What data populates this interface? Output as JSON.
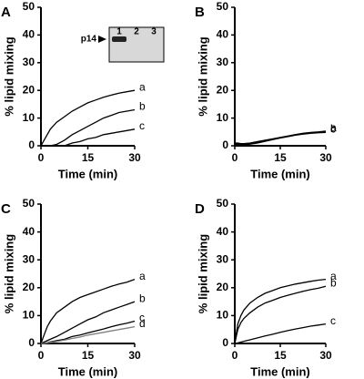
{
  "chart_data": [
    {
      "type": "line",
      "panel_label": "A",
      "y_label": "% lipid mixing",
      "x_label": "Time (min)",
      "xlim": [
        0,
        30
      ],
      "xticks": [
        0,
        15,
        30
      ],
      "ylim": [
        0,
        50
      ],
      "yticks": [
        0,
        10,
        20,
        30,
        40,
        50
      ],
      "x": [
        0,
        1,
        2,
        3,
        5,
        7.5,
        10,
        12.5,
        15,
        17.5,
        20,
        22.5,
        25,
        27.5,
        30
      ],
      "series": [
        {
          "name": "a",
          "color": "#000000",
          "values": [
            0,
            2,
            4,
            6,
            8.5,
            10.5,
            12.5,
            14,
            15.5,
            16.5,
            17.5,
            18.3,
            19,
            19.5,
            20
          ]
        },
        {
          "name": "b",
          "color": "#000000",
          "values": [
            0,
            0,
            0,
            0,
            0.5,
            2,
            4,
            5.5,
            7,
            8.5,
            10,
            11,
            12,
            12.5,
            13
          ]
        },
        {
          "name": "c",
          "color": "#000000",
          "values": [
            0,
            0,
            0,
            0,
            0,
            0,
            1,
            1.5,
            2.5,
            3,
            4,
            4.5,
            5,
            5.5,
            6
          ]
        }
      ],
      "inset": {
        "lane_labels": [
          "1",
          "2",
          "3"
        ],
        "band_label": "p14"
      }
    },
    {
      "type": "line",
      "panel_label": "B",
      "y_label": "% lipid mixing",
      "x_label": "Time (min)",
      "xlim": [
        0,
        30
      ],
      "xticks": [
        0,
        15,
        30
      ],
      "ylim": [
        0,
        50
      ],
      "yticks": [
        0,
        10,
        20,
        30,
        40,
        50
      ],
      "x": [
        0,
        1,
        2,
        3,
        5,
        7.5,
        10,
        12.5,
        15,
        17.5,
        20,
        22.5,
        25,
        27.5,
        30
      ],
      "series": [
        {
          "name": "a",
          "color": "#000000",
          "values": [
            1,
            1,
            0.8,
            0.8,
            1,
            1.5,
            2,
            2.5,
            3,
            3.5,
            4,
            4.5,
            4.8,
            5,
            5.3
          ]
        },
        {
          "name": "b",
          "color": "#000000",
          "values": [
            0.8,
            0.7,
            0.6,
            0.6,
            0.8,
            1.2,
            1.8,
            2.4,
            3,
            3.5,
            4,
            4.4,
            4.7,
            4.9,
            5
          ]
        },
        {
          "name": "c",
          "color": "#000000",
          "values": [
            0.5,
            0.4,
            0.3,
            0.4,
            0.6,
            1,
            1.6,
            2.2,
            2.8,
            3.3,
            3.8,
            4.2,
            4.5,
            4.7,
            4.8
          ]
        }
      ]
    },
    {
      "type": "line",
      "panel_label": "C",
      "y_label": "% lipid mixing",
      "x_label": "Time (min)",
      "xlim": [
        0,
        30
      ],
      "xticks": [
        0,
        15,
        30
      ],
      "ylim": [
        0,
        50
      ],
      "yticks": [
        0,
        10,
        20,
        30,
        40,
        50
      ],
      "x": [
        0,
        1,
        2,
        3,
        5,
        7.5,
        10,
        12.5,
        15,
        17.5,
        20,
        22.5,
        25,
        27.5,
        30
      ],
      "series": [
        {
          "name": "a",
          "color": "#000000",
          "values": [
            0,
            3,
            6,
            8,
            11,
            13,
            15,
            16.5,
            17.5,
            18.5,
            19.5,
            20.5,
            21.3,
            22,
            23
          ]
        },
        {
          "name": "b",
          "color": "#000000",
          "values": [
            0,
            0.5,
            1,
            1.5,
            2.5,
            4,
            5.5,
            7,
            8.5,
            9.5,
            11,
            12,
            13,
            14,
            15
          ]
        },
        {
          "name": "c",
          "color": "#000000",
          "values": [
            0,
            0,
            0.3,
            0.6,
            1,
            1.5,
            2.5,
            3,
            3.8,
            4.5,
            5.2,
            6,
            6.7,
            7.3,
            8
          ]
        },
        {
          "name": "d",
          "color": "#808080",
          "values": [
            0,
            0,
            0.2,
            0.4,
            0.7,
            1.2,
            1.8,
            2.3,
            3,
            3.5,
            4,
            4.5,
            5,
            5.5,
            6
          ]
        }
      ]
    },
    {
      "type": "line",
      "panel_label": "D",
      "y_label": "% lipid mixing",
      "x_label": "Time (min)",
      "xlim": [
        0,
        30
      ],
      "xticks": [
        0,
        15,
        30
      ],
      "ylim": [
        0,
        50
      ],
      "yticks": [
        0,
        10,
        20,
        30,
        40,
        50
      ],
      "x": [
        0,
        1,
        2,
        3,
        5,
        7.5,
        10,
        12.5,
        15,
        17.5,
        20,
        22.5,
        25,
        27.5,
        30
      ],
      "series": [
        {
          "name": "a",
          "color": "#000000",
          "values": [
            0,
            7,
            10,
            12,
            14.5,
            16.5,
            18,
            19,
            20,
            20.7,
            21.3,
            21.8,
            22.3,
            22.7,
            23
          ]
        },
        {
          "name": "b",
          "color": "#000000",
          "values": [
            0,
            5,
            7.5,
            9,
            11,
            13,
            14.5,
            15.5,
            16.5,
            17.3,
            18,
            18.7,
            19.3,
            19.8,
            20.5
          ]
        },
        {
          "name": "c",
          "color": "#000000",
          "values": [
            0,
            0.2,
            0.5,
            0.8,
            1.3,
            2,
            2.7,
            3.3,
            4,
            4.6,
            5.2,
            5.7,
            6.2,
            6.6,
            7
          ]
        }
      ]
    }
  ]
}
